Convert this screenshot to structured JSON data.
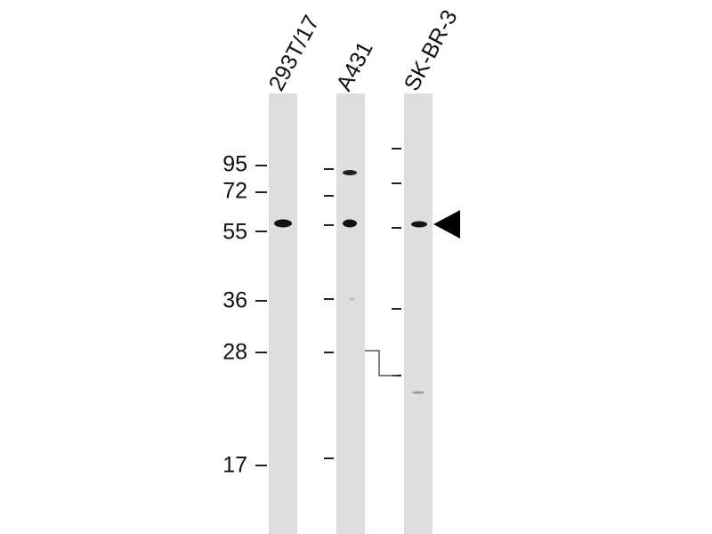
{
  "lanes": [
    "293T/17",
    "A431",
    "SK-BR-3"
  ],
  "markers": [
    "95",
    "72",
    "55",
    "36",
    "28",
    "17"
  ]
}
